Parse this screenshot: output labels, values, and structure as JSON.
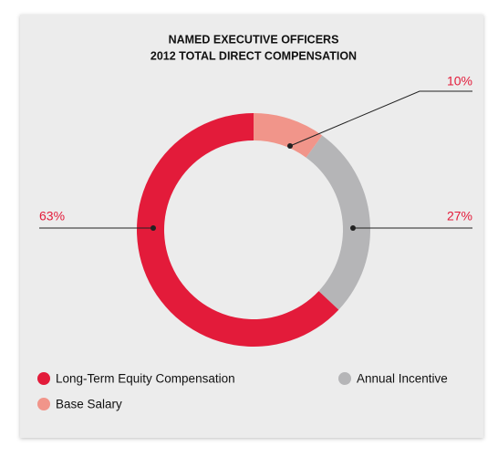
{
  "chart_data": {
    "type": "pie",
    "title": [
      "NAMED EXECUTIVE OFFICERS",
      "2012 TOTAL DIRECT COMPENSATION"
    ],
    "categories": [
      "Base Salary",
      "Annual Incentive",
      "Long-Term Equity Compensation"
    ],
    "values": [
      10,
      27,
      63
    ],
    "value_labels": [
      "10%",
      "27%",
      "63%"
    ],
    "colors": [
      "#f1958a",
      "#b5b5b7",
      "#e31b3a"
    ],
    "donut": true
  }
}
